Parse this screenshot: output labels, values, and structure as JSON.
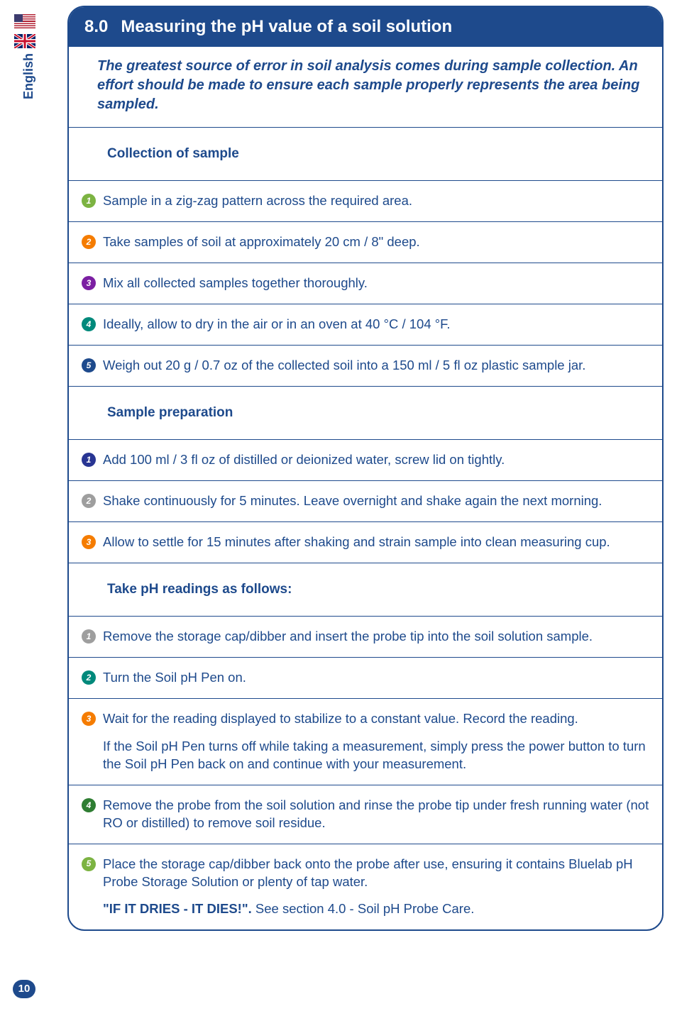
{
  "sidebar": {
    "language": "English",
    "page_number": "10"
  },
  "header": {
    "section_number": "8.0",
    "title": "Measuring the pH value of a soil solution"
  },
  "intro": "The greatest source of error in soil analysis comes during sample collection. An effort should be made to ensure each sample properly represents the area being sampled.",
  "sections": [
    {
      "heading": "Collection of sample",
      "steps": [
        {
          "n": "1",
          "color": "green",
          "text": "Sample in a zig-zag pattern across the required area."
        },
        {
          "n": "2",
          "color": "orange",
          "text": "Take samples of soil at approximately 20 cm / 8\" deep."
        },
        {
          "n": "3",
          "color": "purple",
          "text": "Mix all collected samples together thoroughly."
        },
        {
          "n": "4",
          "color": "teal",
          "text": "Ideally, allow to dry in the air or in an oven at 40 °C / 104 °F."
        },
        {
          "n": "5",
          "color": "blue",
          "text": "Weigh out 20 g / 0.7 oz of the collected soil into a 150 ml / 5 fl oz plastic sample jar."
        }
      ]
    },
    {
      "heading": "Sample preparation",
      "steps": [
        {
          "n": "1",
          "color": "dblue",
          "text": "Add 100 ml / 3 fl oz of distilled or deionized water, screw lid on tightly."
        },
        {
          "n": "2",
          "color": "gray",
          "text": "Shake continuously for 5 minutes. Leave overnight and shake again the next morning."
        },
        {
          "n": "3",
          "color": "orange",
          "text": "Allow to settle for 15 minutes after shaking and strain sample into clean measuring cup."
        }
      ]
    },
    {
      "heading": "Take pH readings as follows:",
      "steps": [
        {
          "n": "1",
          "color": "gray",
          "text": "Remove the storage cap/dibber and insert the probe tip into the soil solution sample."
        },
        {
          "n": "2",
          "color": "teal",
          "text": "Turn the Soil pH Pen on."
        },
        {
          "n": "3",
          "color": "orange",
          "text": "Wait for the reading displayed to stabilize to a constant value. Record the reading.",
          "extra": "If the Soil pH Pen turns off while taking a measurement, simply press the power button to turn the Soil pH Pen back on and continue with your measurement."
        },
        {
          "n": "4",
          "color": "dgreen",
          "text": "Remove the probe from the soil solution and rinse the probe tip under fresh running water (not RO or distilled) to remove soil residue."
        },
        {
          "n": "5",
          "color": "green",
          "text": "Place the storage cap/dibber back onto the probe after use, ensuring it contains Bluelab pH Probe Storage Solution or plenty of tap water.",
          "warn": "\"IF IT DRIES - IT DIES!\".",
          "warn_rest": " See section 4.0 - Soil pH Probe Care."
        }
      ]
    }
  ],
  "colors": {
    "brand": "#1e4a8c",
    "bg": "#ffffff"
  }
}
